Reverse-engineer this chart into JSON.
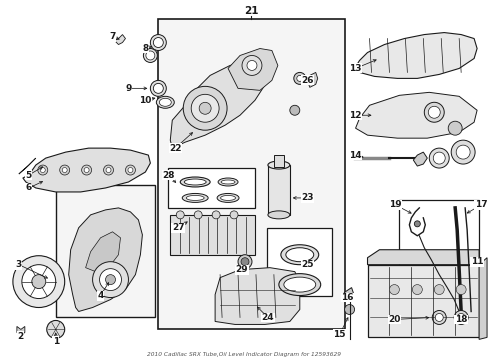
{
  "title": "2010 Cadillac SRX Tube,Oil Level Indicator Diagram for 12593629",
  "bg_color": "#ffffff",
  "fig_width": 4.89,
  "fig_height": 3.6,
  "dpi": 100,
  "line_color": "#1a1a1a",
  "label_fontsize": 6.5
}
